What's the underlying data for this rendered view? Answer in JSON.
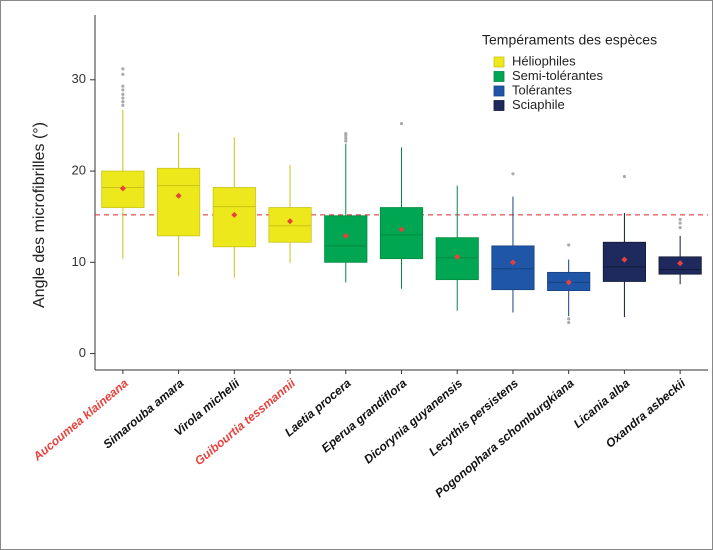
{
  "chart_data": {
    "type": "box",
    "y_label": "Angle des microfibrilles (°)",
    "legend_title": "Tempéraments des espèces",
    "legend_position": "top-right",
    "categories": [
      "Aucoumea klaineana",
      "Simarouba amara",
      "Virola michelii",
      "Guibourtia tessmannii",
      "Laetia procera",
      "Eperua grandiflora",
      "Dicorynia guyanensis",
      "Lecythis persistens",
      "Pogonophara schomburgkiana",
      "Licania alba",
      "Oxandra asbeckii"
    ],
    "category_colors": [
      "#e8413c",
      "#111111",
      "#111111",
      "#e8413c",
      "#111111",
      "#111111",
      "#111111",
      "#111111",
      "#111111",
      "#111111",
      "#111111"
    ],
    "ylim": [
      -1.8,
      37.1
    ],
    "yticks": [
      0,
      10,
      20,
      30
    ],
    "reference_line": 15.2,
    "reference_color": "#d62728",
    "mean_color": "#e8413c",
    "outlier_color": "#aaaaaa",
    "series": [
      {
        "name": "Héliophiles",
        "color": "#ede81c",
        "stroke": "#c9c417",
        "boxes": [
          {
            "whisker_low": 10.4,
            "q1": 16.0,
            "median": 18.2,
            "q3": 20.0,
            "whisker_high": 26.7,
            "mean": 18.1,
            "outliers": [
              27.2,
              27.6,
              28.0,
              28.4,
              28.9,
              29.3,
              30.6,
              31.2
            ]
          },
          {
            "whisker_low": 8.5,
            "q1": 12.9,
            "median": 18.4,
            "q3": 20.3,
            "whisker_high": 24.2,
            "mean": 17.3,
            "outliers": []
          },
          {
            "whisker_low": 8.3,
            "q1": 11.7,
            "median": 16.1,
            "q3": 18.2,
            "whisker_high": 23.7,
            "mean": 15.2,
            "outliers": []
          },
          {
            "whisker_low": 9.9,
            "q1": 12.2,
            "median": 14.0,
            "q3": 16.0,
            "whisker_high": 20.7,
            "mean": 14.5,
            "outliers": []
          }
        ]
      },
      {
        "name": "Semi-tolérantes",
        "color": "#00a651",
        "stroke": "#008a43",
        "boxes": [
          {
            "whisker_low": 7.8,
            "q1": 10.0,
            "median": 11.8,
            "q3": 15.1,
            "whisker_high": 23.0,
            "mean": 12.9,
            "outliers": [
              23.3,
              23.6,
              23.9,
              24.1
            ]
          },
          {
            "whisker_low": 7.1,
            "q1": 10.4,
            "median": 13.0,
            "q3": 16.0,
            "whisker_high": 22.6,
            "mean": 13.6,
            "outliers": [
              25.2
            ]
          },
          {
            "whisker_low": 4.7,
            "q1": 8.1,
            "median": 10.5,
            "q3": 12.7,
            "whisker_high": 18.4,
            "mean": 10.6,
            "outliers": []
          }
        ]
      },
      {
        "name": "Tolérantes",
        "color": "#1f56a8",
        "stroke": "#17427f",
        "boxes": [
          {
            "whisker_low": 4.5,
            "q1": 7.0,
            "median": 9.3,
            "q3": 11.8,
            "whisker_high": 17.2,
            "mean": 10.0,
            "outliers": [
              19.7
            ]
          },
          {
            "whisker_low": 4.1,
            "q1": 6.9,
            "median": 7.8,
            "q3": 8.9,
            "whisker_high": 10.3,
            "mean": 7.8,
            "outliers": [
              3.4,
              3.8,
              11.9
            ]
          }
        ]
      },
      {
        "name": "Sciaphile",
        "color": "#1e2a5e",
        "stroke": "#111833",
        "boxes": [
          {
            "whisker_low": 4.0,
            "q1": 7.9,
            "median": 9.5,
            "q3": 12.2,
            "whisker_high": 15.4,
            "mean": 10.3,
            "outliers": [
              19.4
            ]
          },
          {
            "whisker_low": 7.6,
            "q1": 8.7,
            "median": 9.2,
            "q3": 10.6,
            "whisker_high": 12.9,
            "mean": 9.9,
            "outliers": [
              13.8,
              14.3,
              14.7
            ]
          }
        ]
      }
    ]
  }
}
